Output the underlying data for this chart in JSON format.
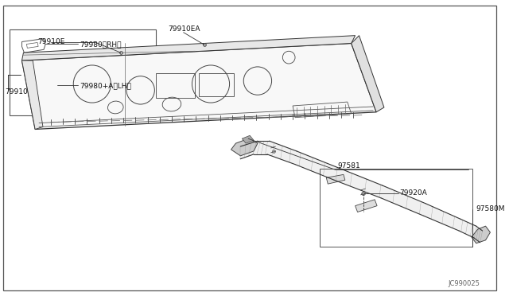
{
  "bg_color": "#ffffff",
  "diagram_code": "JC990025",
  "label_79980RH": "79980〈RH〉",
  "label_79980LH": "79980+A〈LH〉",
  "label_97581": "97581",
  "label_79920A": "79920A",
  "label_97580M": "97580M",
  "label_79910": "79910",
  "label_79910E": "79910E",
  "label_79910EA": "79910EA"
}
